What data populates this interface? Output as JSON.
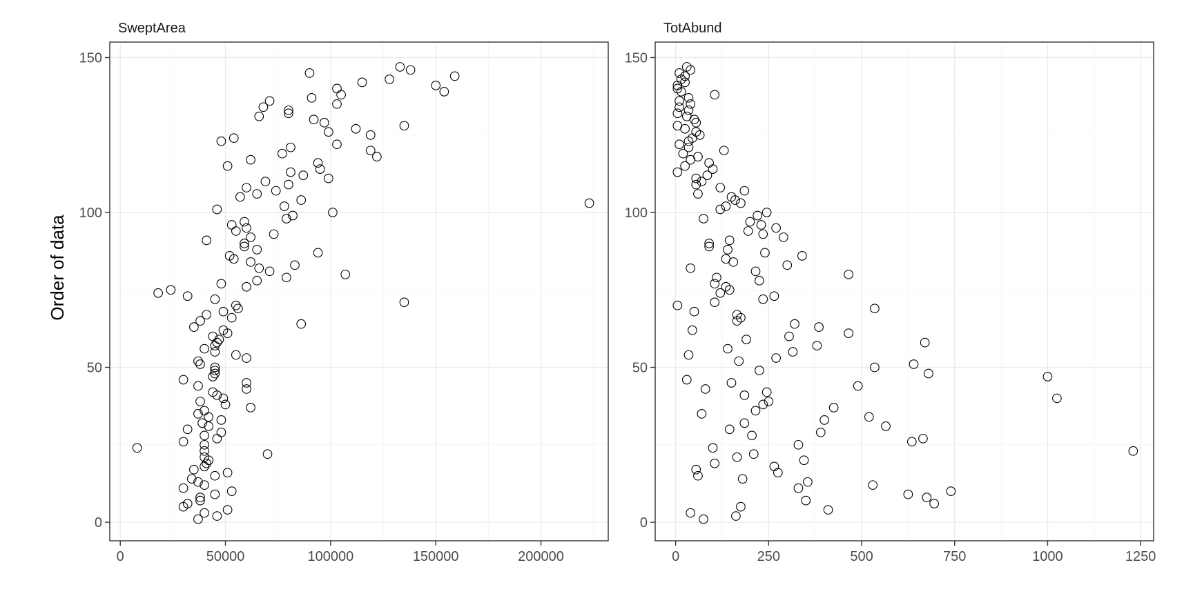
{
  "figure": {
    "ylabel": "Order of data"
  },
  "chart_data": [
    {
      "type": "scatter",
      "title": "SweptArea",
      "xlabel": "",
      "ylabel": "Order of data",
      "xlim": [
        -5000,
        232000
      ],
      "ylim": [
        -6,
        155
      ],
      "xticks": [
        0,
        50000,
        100000,
        150000,
        200000
      ],
      "xtick_labels": [
        "0",
        "50000",
        "100000",
        "150000",
        "200000"
      ],
      "yticks": [
        0,
        50,
        100,
        150
      ],
      "ytick_labels": [
        "0",
        "50",
        "100",
        "150"
      ],
      "grid": true,
      "points": [
        [
          37000,
          1
        ],
        [
          46000,
          2
        ],
        [
          40000,
          3
        ],
        [
          51000,
          4
        ],
        [
          30000,
          5
        ],
        [
          32000,
          6
        ],
        [
          38000,
          7
        ],
        [
          38000,
          8
        ],
        [
          45000,
          9
        ],
        [
          53000,
          10
        ],
        [
          30000,
          11
        ],
        [
          40000,
          12
        ],
        [
          37000,
          13
        ],
        [
          34000,
          14
        ],
        [
          45000,
          15
        ],
        [
          51000,
          16
        ],
        [
          35000,
          17
        ],
        [
          40000,
          18
        ],
        [
          41000,
          19
        ],
        [
          42000,
          20
        ],
        [
          40000,
          21
        ],
        [
          70000,
          22
        ],
        [
          40000,
          23
        ],
        [
          8000,
          24
        ],
        [
          40000,
          25
        ],
        [
          30000,
          26
        ],
        [
          46000,
          27
        ],
        [
          40000,
          28
        ],
        [
          48000,
          29
        ],
        [
          32000,
          30
        ],
        [
          42000,
          31
        ],
        [
          39000,
          32
        ],
        [
          48000,
          33
        ],
        [
          42000,
          34
        ],
        [
          37000,
          35
        ],
        [
          40000,
          36
        ],
        [
          62000,
          37
        ],
        [
          50000,
          38
        ],
        [
          38000,
          39
        ],
        [
          49000,
          40
        ],
        [
          46000,
          41
        ],
        [
          44000,
          42
        ],
        [
          60000,
          43
        ],
        [
          37000,
          44
        ],
        [
          60000,
          45
        ],
        [
          30000,
          46
        ],
        [
          44000,
          47
        ],
        [
          45000,
          48
        ],
        [
          45000,
          49
        ],
        [
          45000,
          50
        ],
        [
          38000,
          51
        ],
        [
          37000,
          52
        ],
        [
          60000,
          53
        ],
        [
          55000,
          54
        ],
        [
          45000,
          55
        ],
        [
          40000,
          56
        ],
        [
          45000,
          57
        ],
        [
          46000,
          58
        ],
        [
          47000,
          59
        ],
        [
          44000,
          60
        ],
        [
          51000,
          61
        ],
        [
          49000,
          62
        ],
        [
          35000,
          63
        ],
        [
          86000,
          64
        ],
        [
          38000,
          65
        ],
        [
          53000,
          66
        ],
        [
          41000,
          67
        ],
        [
          49000,
          68
        ],
        [
          56000,
          69
        ],
        [
          55000,
          70
        ],
        [
          135000,
          71
        ],
        [
          45000,
          72
        ],
        [
          32000,
          73
        ],
        [
          18000,
          74
        ],
        [
          24000,
          75
        ],
        [
          60000,
          76
        ],
        [
          48000,
          77
        ],
        [
          65000,
          78
        ],
        [
          79000,
          79
        ],
        [
          107000,
          80
        ],
        [
          71000,
          81
        ],
        [
          66000,
          82
        ],
        [
          83000,
          83
        ],
        [
          62000,
          84
        ],
        [
          54000,
          85
        ],
        [
          52000,
          86
        ],
        [
          94000,
          87
        ],
        [
          65000,
          88
        ],
        [
          59000,
          89
        ],
        [
          59000,
          90
        ],
        [
          41000,
          91
        ],
        [
          62000,
          92
        ],
        [
          73000,
          93
        ],
        [
          55000,
          94
        ],
        [
          60000,
          95
        ],
        [
          53000,
          96
        ],
        [
          59000,
          97
        ],
        [
          79000,
          98
        ],
        [
          82000,
          99
        ],
        [
          101000,
          100
        ],
        [
          46000,
          101
        ],
        [
          78000,
          102
        ],
        [
          223000,
          103
        ],
        [
          86000,
          104
        ],
        [
          57000,
          105
        ],
        [
          65000,
          106
        ],
        [
          74000,
          107
        ],
        [
          60000,
          108
        ],
        [
          80000,
          109
        ],
        [
          69000,
          110
        ],
        [
          99000,
          111
        ],
        [
          87000,
          112
        ],
        [
          81000,
          113
        ],
        [
          95000,
          114
        ],
        [
          51000,
          115
        ],
        [
          94000,
          116
        ],
        [
          62000,
          117
        ],
        [
          122000,
          118
        ],
        [
          77000,
          119
        ],
        [
          119000,
          120
        ],
        [
          81000,
          121
        ],
        [
          103000,
          122
        ],
        [
          48000,
          123
        ],
        [
          54000,
          124
        ],
        [
          119000,
          125
        ],
        [
          99000,
          126
        ],
        [
          112000,
          127
        ],
        [
          135000,
          128
        ],
        [
          97000,
          129
        ],
        [
          92000,
          130
        ],
        [
          66000,
          131
        ],
        [
          80000,
          132
        ],
        [
          80000,
          133
        ],
        [
          68000,
          134
        ],
        [
          103000,
          135
        ],
        [
          71000,
          136
        ],
        [
          91000,
          137
        ],
        [
          105000,
          138
        ],
        [
          154000,
          139
        ],
        [
          103000,
          140
        ],
        [
          150000,
          141
        ],
        [
          115000,
          142
        ],
        [
          128000,
          143
        ],
        [
          159000,
          144
        ],
        [
          90000,
          145
        ],
        [
          138000,
          146
        ],
        [
          133000,
          147
        ]
      ]
    },
    {
      "type": "scatter",
      "title": "TotAbund",
      "xlabel": "",
      "ylabel": "Order of data",
      "xlim": [
        -55,
        1285
      ],
      "ylim": [
        -6,
        155
      ],
      "xticks": [
        0,
        250,
        500,
        750,
        1000,
        1250
      ],
      "xtick_labels": [
        "0",
        "250",
        "500",
        "750",
        "1000",
        "1250"
      ],
      "yticks": [
        0,
        50,
        100,
        150
      ],
      "ytick_labels": [
        "0",
        "50",
        "100",
        "150"
      ],
      "grid": true,
      "points": [
        [
          75,
          1
        ],
        [
          162,
          2
        ],
        [
          40,
          3
        ],
        [
          410,
          4
        ],
        [
          175,
          5
        ],
        [
          695,
          6
        ],
        [
          350,
          7
        ],
        [
          675,
          8
        ],
        [
          625,
          9
        ],
        [
          740,
          10
        ],
        [
          330,
          11
        ],
        [
          530,
          12
        ],
        [
          355,
          13
        ],
        [
          180,
          14
        ],
        [
          60,
          15
        ],
        [
          275,
          16
        ],
        [
          55,
          17
        ],
        [
          265,
          18
        ],
        [
          105,
          19
        ],
        [
          345,
          20
        ],
        [
          165,
          21
        ],
        [
          210,
          22
        ],
        [
          1230,
          23
        ],
        [
          100,
          24
        ],
        [
          330,
          25
        ],
        [
          635,
          26
        ],
        [
          665,
          27
        ],
        [
          205,
          28
        ],
        [
          390,
          29
        ],
        [
          145,
          30
        ],
        [
          565,
          31
        ],
        [
          185,
          32
        ],
        [
          400,
          33
        ],
        [
          520,
          34
        ],
        [
          70,
          35
        ],
        [
          215,
          36
        ],
        [
          425,
          37
        ],
        [
          235,
          38
        ],
        [
          250,
          39
        ],
        [
          1025,
          40
        ],
        [
          185,
          41
        ],
        [
          245,
          42
        ],
        [
          80,
          43
        ],
        [
          490,
          44
        ],
        [
          150,
          45
        ],
        [
          30,
          46
        ],
        [
          1000,
          47
        ],
        [
          680,
          48
        ],
        [
          225,
          49
        ],
        [
          535,
          50
        ],
        [
          640,
          51
        ],
        [
          170,
          52
        ],
        [
          270,
          53
        ],
        [
          35,
          54
        ],
        [
          315,
          55
        ],
        [
          140,
          56
        ],
        [
          380,
          57
        ],
        [
          670,
          58
        ],
        [
          190,
          59
        ],
        [
          305,
          60
        ],
        [
          465,
          61
        ],
        [
          45,
          62
        ],
        [
          385,
          63
        ],
        [
          320,
          64
        ],
        [
          165,
          65
        ],
        [
          175,
          66
        ],
        [
          165,
          67
        ],
        [
          50,
          68
        ],
        [
          535,
          69
        ],
        [
          5,
          70
        ],
        [
          105,
          71
        ],
        [
          235,
          72
        ],
        [
          265,
          73
        ],
        [
          120,
          74
        ],
        [
          145,
          75
        ],
        [
          135,
          76
        ],
        [
          105,
          77
        ],
        [
          225,
          78
        ],
        [
          110,
          79
        ],
        [
          465,
          80
        ],
        [
          215,
          81
        ],
        [
          40,
          82
        ],
        [
          300,
          83
        ],
        [
          155,
          84
        ],
        [
          135,
          85
        ],
        [
          340,
          86
        ],
        [
          240,
          87
        ],
        [
          140,
          88
        ],
        [
          90,
          89
        ],
        [
          90,
          90
        ],
        [
          145,
          91
        ],
        [
          290,
          92
        ],
        [
          235,
          93
        ],
        [
          195,
          94
        ],
        [
          270,
          95
        ],
        [
          230,
          96
        ],
        [
          200,
          97
        ],
        [
          75,
          98
        ],
        [
          220,
          99
        ],
        [
          245,
          100
        ],
        [
          120,
          101
        ],
        [
          135,
          102
        ],
        [
          175,
          103
        ],
        [
          160,
          104
        ],
        [
          150,
          105
        ],
        [
          60,
          106
        ],
        [
          185,
          107
        ],
        [
          120,
          108
        ],
        [
          55,
          109
        ],
        [
          70,
          110
        ],
        [
          55,
          111
        ],
        [
          85,
          112
        ],
        [
          5,
          113
        ],
        [
          100,
          114
        ],
        [
          25,
          115
        ],
        [
          90,
          116
        ],
        [
          40,
          117
        ],
        [
          60,
          118
        ],
        [
          20,
          119
        ],
        [
          130,
          120
        ],
        [
          35,
          121
        ],
        [
          10,
          122
        ],
        [
          35,
          123
        ],
        [
          45,
          124
        ],
        [
          65,
          125
        ],
        [
          55,
          126
        ],
        [
          25,
          127
        ],
        [
          5,
          128
        ],
        [
          55,
          129
        ],
        [
          50,
          130
        ],
        [
          30,
          131
        ],
        [
          5,
          132
        ],
        [
          35,
          133
        ],
        [
          10,
          134
        ],
        [
          40,
          135
        ],
        [
          10,
          136
        ],
        [
          35,
          137
        ],
        [
          105,
          138
        ],
        [
          15,
          139
        ],
        [
          5,
          140
        ],
        [
          5,
          141
        ],
        [
          25,
          142
        ],
        [
          15,
          143
        ],
        [
          25,
          144
        ],
        [
          10,
          145
        ],
        [
          40,
          146
        ],
        [
          30,
          147
        ]
      ]
    }
  ]
}
